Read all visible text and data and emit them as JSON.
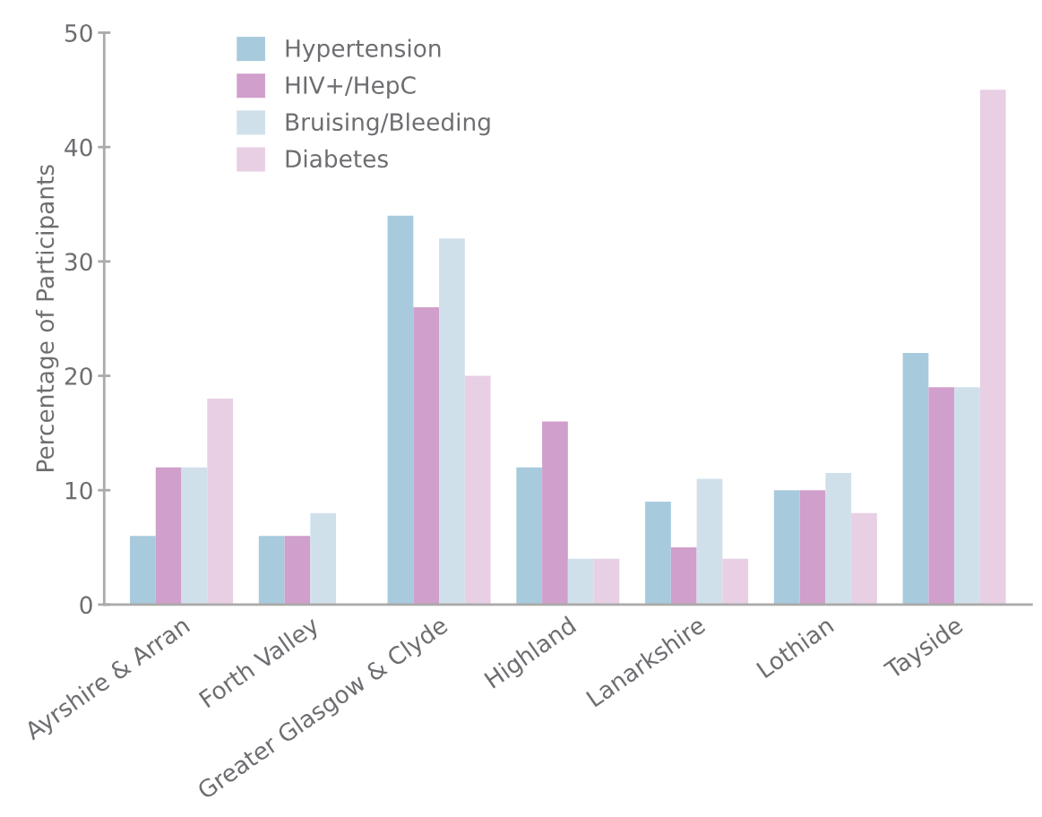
{
  "chart_data": {
    "type": "bar",
    "ylabel": "Percentage of Participants",
    "categories": [
      "Ayrshire & Arran",
      "Forth Valley",
      "Greater Glasgow & Clyde",
      "Highland",
      "Lanarkshire",
      "Lothian",
      "Tayside"
    ],
    "series": [
      {
        "name": "Hypertension",
        "color": "#a8cadd",
        "values": [
          6,
          6,
          34,
          12,
          9,
          10,
          22
        ]
      },
      {
        "name": "HIV+/HepC",
        "color": "#d09fcb",
        "values": [
          12,
          6,
          26,
          16,
          5,
          10,
          19
        ]
      },
      {
        "name": "Bruising/Bleeding",
        "color": "#d0e0eb",
        "values": [
          12,
          8,
          32,
          4,
          11,
          11.5,
          19
        ]
      },
      {
        "name": "Diabetes",
        "color": "#e8cfe4",
        "values": [
          18,
          null,
          20,
          4,
          4,
          8,
          45
        ]
      }
    ],
    "ylim": [
      0,
      50
    ],
    "yticks": [
      0,
      10,
      20,
      30,
      40,
      50
    ],
    "grid": false,
    "legend": "top left"
  }
}
